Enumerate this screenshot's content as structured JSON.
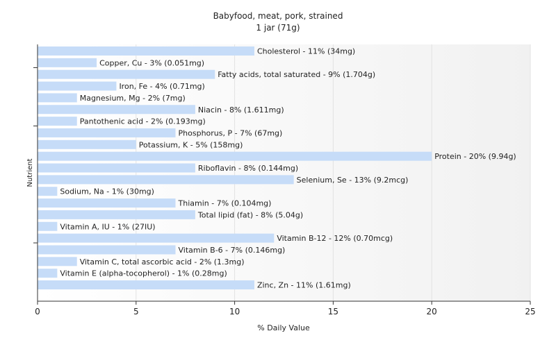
{
  "chart_data": {
    "type": "bar",
    "orientation": "horizontal",
    "title": "Babyfood, meat, pork, strained",
    "subtitle": "1 jar (71g)",
    "xlabel": "% Daily Value",
    "ylabel": "Nutrient",
    "xlim": [
      0,
      25
    ],
    "xticks": [
      0,
      5,
      10,
      15,
      20,
      25
    ],
    "grid": true,
    "bar_color": "#c6dcf8",
    "categories": [
      "Cholesterol",
      "Copper, Cu",
      "Fatty acids, total saturated",
      "Iron, Fe",
      "Magnesium, Mg",
      "Niacin",
      "Pantothenic acid",
      "Phosphorus, P",
      "Potassium, K",
      "Protein",
      "Riboflavin",
      "Selenium, Se",
      "Sodium, Na",
      "Thiamin",
      "Total lipid (fat)",
      "Vitamin A, IU",
      "Vitamin B-12",
      "Vitamin B-6",
      "Vitamin C, total ascorbic acid",
      "Vitamin E (alpha-tocopherol)",
      "Zinc, Zn"
    ],
    "values": [
      11,
      3,
      9,
      4,
      2,
      8,
      2,
      7,
      5,
      20,
      8,
      13,
      1,
      7,
      8,
      1,
      12,
      7,
      2,
      1,
      11
    ],
    "labels": [
      "Cholesterol - 11% (34mg)",
      "Copper, Cu - 3% (0.051mg)",
      "Fatty acids, total saturated - 9% (1.704g)",
      "Iron, Fe - 4% (0.71mg)",
      "Magnesium, Mg - 2% (7mg)",
      "Niacin - 8% (1.611mg)",
      "Pantothenic acid - 2% (0.193mg)",
      "Phosphorus, P - 7% (67mg)",
      "Potassium, K - 5% (158mg)",
      "Protein - 20% (9.94g)",
      "Riboflavin - 8% (0.144mg)",
      "Selenium, Se - 13% (9.2mcg)",
      "Sodium, Na - 1% (30mg)",
      "Thiamin - 7% (0.104mg)",
      "Total lipid (fat) - 8% (5.04g)",
      "Vitamin A, IU - 1% (27IU)",
      "Vitamin B-12 - 12% (0.70mcg)",
      "Vitamin B-6 - 7% (0.146mg)",
      "Vitamin C, total ascorbic acid - 2% (1.3mg)",
      "Vitamin E (alpha-tocopherol) - 1% (0.28mg)",
      "Zinc, Zn - 11% (1.61mg)"
    ]
  }
}
